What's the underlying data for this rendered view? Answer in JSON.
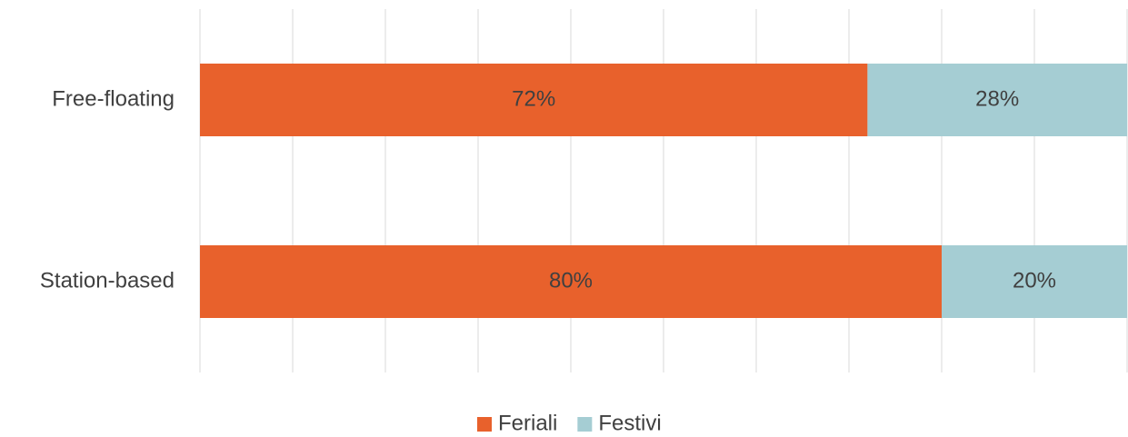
{
  "chart_data": {
    "type": "bar",
    "orientation": "horizontal",
    "stacked": true,
    "categories": [
      "Free-floating",
      "Station-based"
    ],
    "series": [
      {
        "name": "Feriali",
        "color": "#e8612c",
        "values": [
          72,
          80
        ],
        "value_labels": [
          "72%",
          "80%"
        ]
      },
      {
        "name": "Festivi",
        "color": "#a5cdd3",
        "values": [
          28,
          20
        ],
        "value_labels": [
          "28%",
          "20%"
        ]
      }
    ],
    "xlim": [
      0,
      100
    ],
    "xticks": [
      0,
      10,
      20,
      30,
      40,
      50,
      60,
      70,
      80,
      90,
      100
    ],
    "grid": true,
    "legend": "bottom"
  }
}
